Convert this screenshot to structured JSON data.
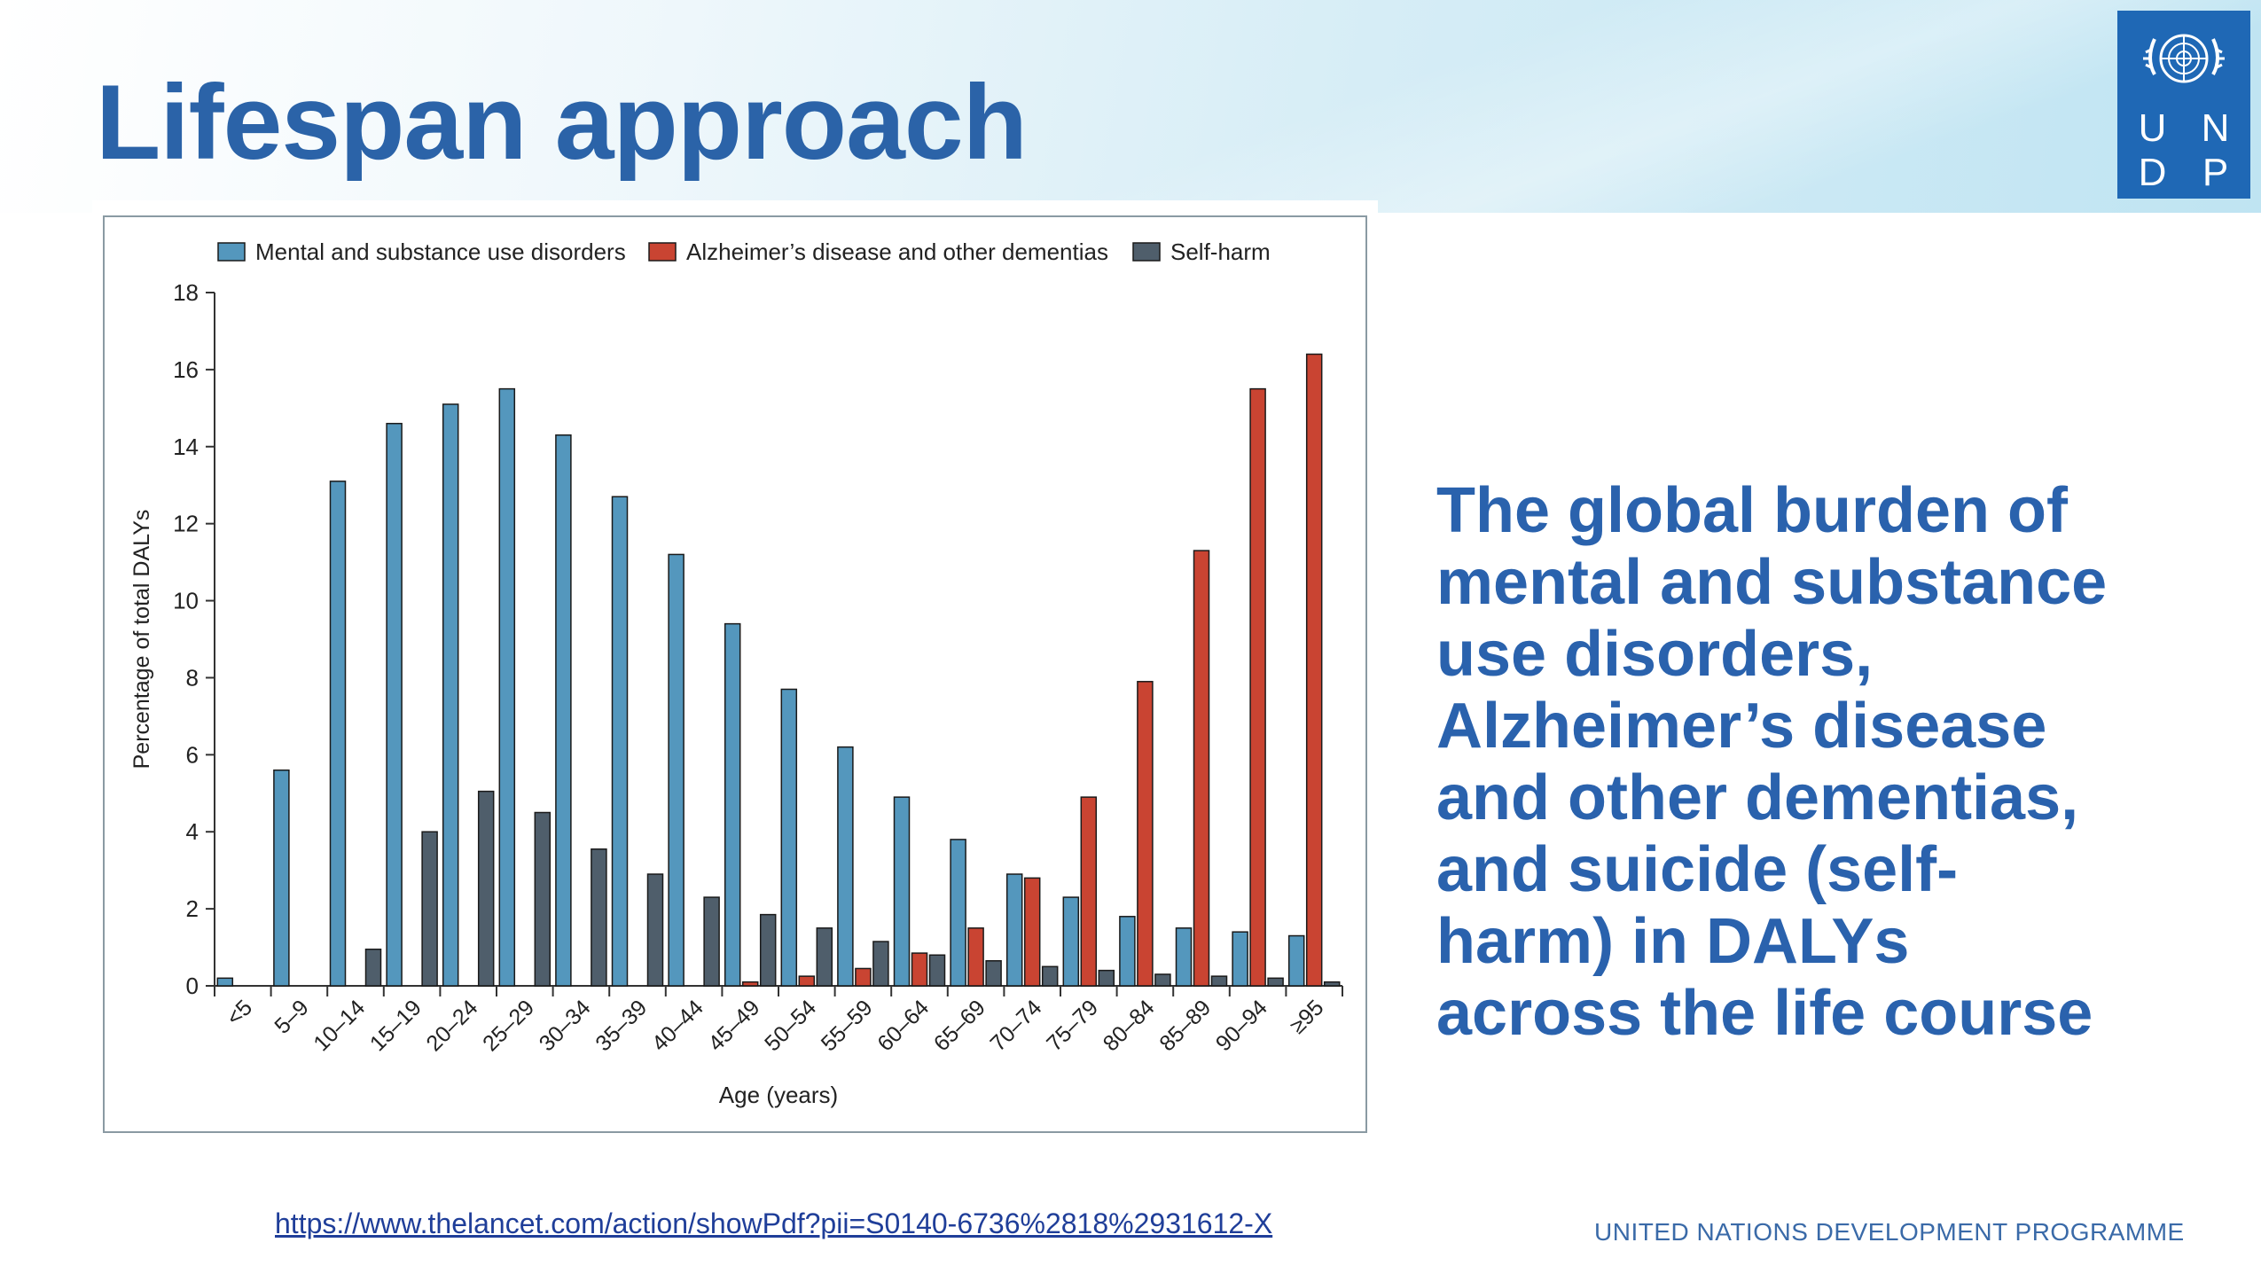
{
  "slide": {
    "title": "Lifespan approach",
    "body_lines": [
      "The global burden of",
      "mental and substance",
      "use disorders,",
      "Alzheimer’s disease",
      "and other dementias,",
      "and suicide (self-",
      "harm) in DALYs",
      "across the life course"
    ],
    "source_link": "https://www.thelancet.com/action/showPdf?pii=S0140-6736%2818%2931612-X",
    "footer": "UNITED NATIONS DEVELOPMENT PROGRAMME"
  },
  "logo": {
    "letters": [
      "U",
      "N",
      "D",
      "P"
    ],
    "icon": "un-emblem-icon",
    "color": "#1f68b5"
  },
  "chart_data": {
    "type": "bar",
    "xlabel": "Age (years)",
    "ylabel": "Percentage of total DALYs",
    "ylim": [
      0,
      18
    ],
    "yticks": [
      "0",
      "2",
      "4",
      "6",
      "8",
      "10",
      "12",
      "14",
      "16",
      "18"
    ],
    "grid": false,
    "legend_position": "top",
    "categories": [
      "<5",
      "5–9",
      "10–14",
      "15–19",
      "20–24",
      "25–29",
      "30–34",
      "35–39",
      "40–44",
      "45–49",
      "50–54",
      "55–59",
      "60–64",
      "65–69",
      "70–74",
      "75–79",
      "80–84",
      "85–89",
      "90–94",
      "≥95"
    ],
    "series": [
      {
        "name": "Mental and substance use disorders",
        "color": "#5497bd",
        "values": [
          0.2,
          5.6,
          13.1,
          14.6,
          15.1,
          15.5,
          14.3,
          12.7,
          11.2,
          9.4,
          7.7,
          6.2,
          4.9,
          3.8,
          2.9,
          2.3,
          1.8,
          1.5,
          1.4,
          1.3
        ]
      },
      {
        "name": "Alzheimer’s disease and other dementias",
        "color": "#c94432",
        "values": [
          0,
          0,
          0,
          0,
          0,
          0,
          0,
          0,
          0,
          0.1,
          0.25,
          0.45,
          0.85,
          1.5,
          2.8,
          4.9,
          7.9,
          11.3,
          15.5,
          16.4
        ]
      },
      {
        "name": "Self-harm",
        "color": "#4f5e6b",
        "values": [
          0,
          0,
          0.95,
          4.0,
          5.05,
          4.5,
          3.55,
          2.9,
          2.3,
          1.85,
          1.5,
          1.15,
          0.8,
          0.65,
          0.5,
          0.4,
          0.3,
          0.25,
          0.2,
          0.1
        ]
      }
    ]
  }
}
